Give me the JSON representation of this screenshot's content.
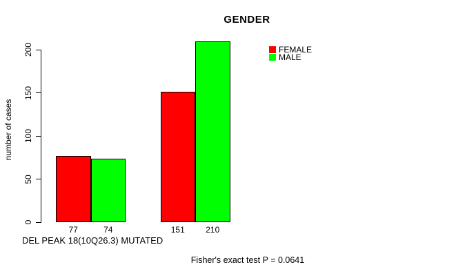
{
  "chart_data": {
    "type": "bar",
    "title": "GENDER",
    "ylabel": "number of cases",
    "xlabel_caption": "DEL PEAK 18(10Q26.3) MUTATED",
    "footer_annotation": "Fisher's exact test P = 0.0641",
    "series": [
      {
        "name": "FEMALE",
        "color": "#ff0000",
        "values": [
          77,
          151
        ]
      },
      {
        "name": "MALE",
        "color": "#00ff00",
        "values": [
          74,
          210
        ]
      }
    ],
    "n_groups": 2,
    "value_labels_shown": true,
    "yticks": [
      0,
      50,
      100,
      150,
      200
    ],
    "ylim": [
      0,
      210
    ],
    "legend": {
      "position": "top-right",
      "entries": [
        "FEMALE",
        "MALE"
      ]
    },
    "grid": false,
    "background_color": "#ffffff",
    "axis_color": "#000000"
  }
}
